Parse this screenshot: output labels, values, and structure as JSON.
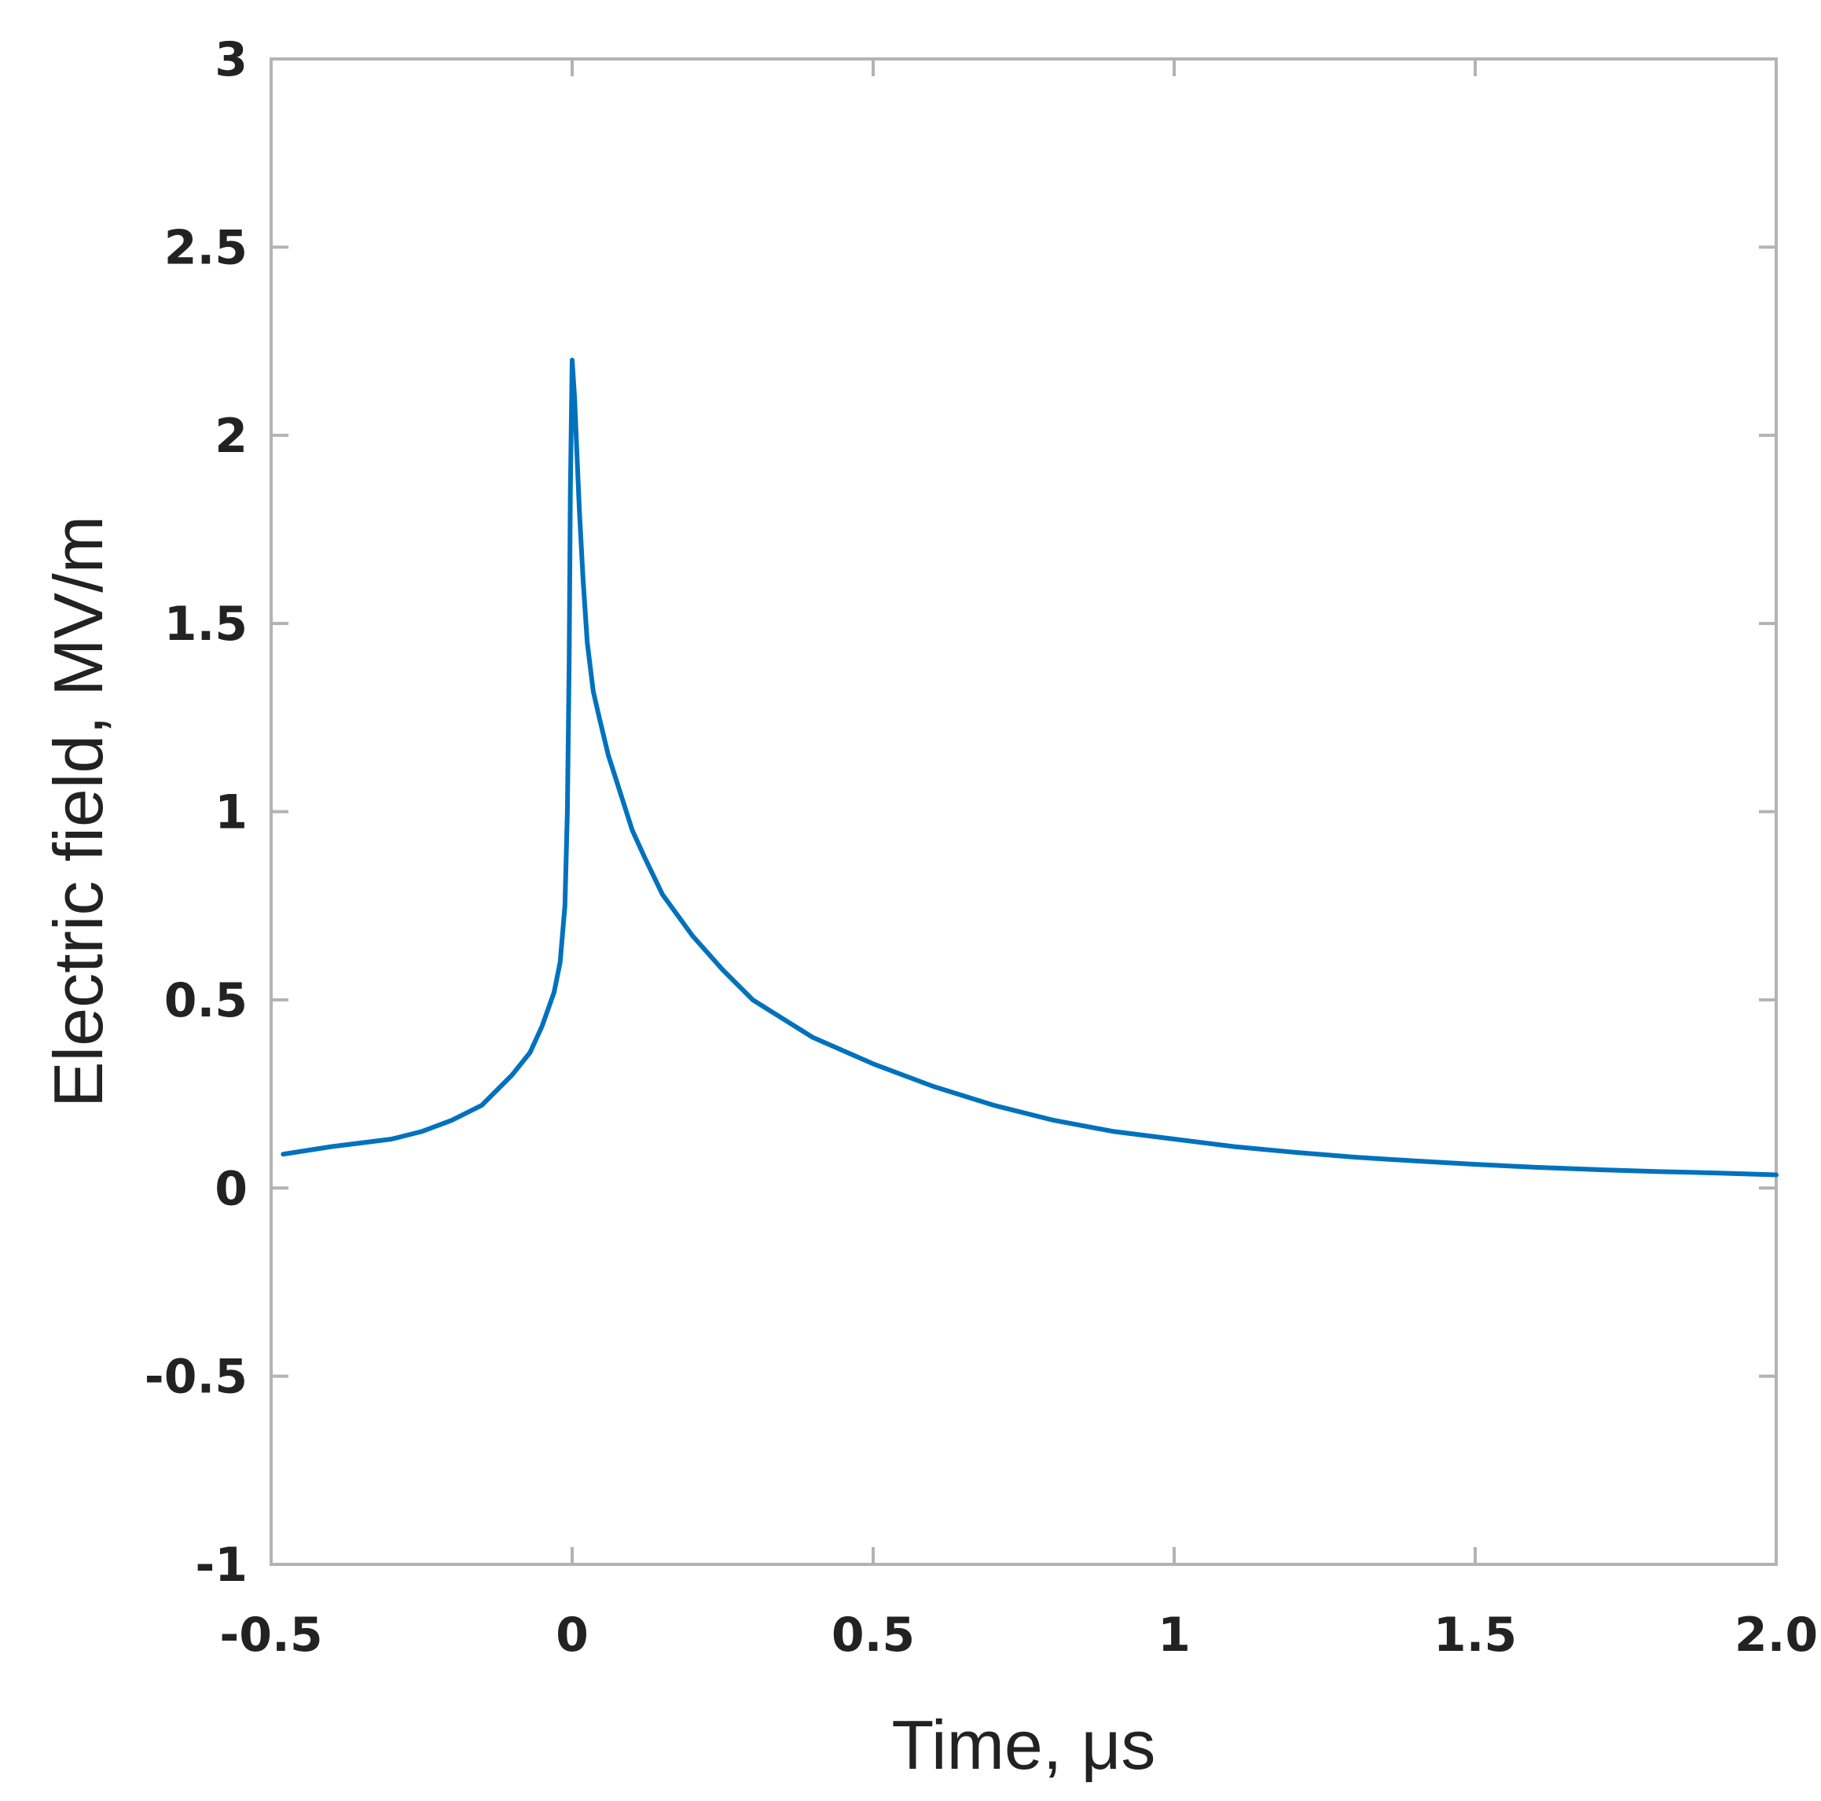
{
  "chart_data": {
    "type": "line",
    "title": "",
    "xlabel": "Time, μs",
    "ylabel": "Electric field, MV/m",
    "xlim": [
      -0.5,
      2.0
    ],
    "ylim": [
      -1,
      3
    ],
    "xticks": [
      -0.5,
      0,
      0.5,
      1,
      1.5,
      2.0
    ],
    "xtick_labels": [
      "-0.5",
      "0",
      "0.5",
      "1",
      "1.5",
      "2.0"
    ],
    "yticks": [
      -1,
      -0.5,
      0,
      0.5,
      1,
      1.5,
      2,
      2.5,
      3
    ],
    "ytick_labels": [
      "-1",
      "-0.5",
      "0",
      "0.5",
      "1",
      "1.5",
      "2",
      "2.5",
      "3"
    ],
    "grid": false,
    "line_color": "#0072BD",
    "axis_color": "#b3b3b3",
    "series": [
      {
        "x": [
          -0.48,
          -0.4,
          -0.3,
          -0.25,
          -0.2,
          -0.15,
          -0.1,
          -0.07,
          -0.05,
          -0.03,
          -0.02,
          -0.012,
          -0.008,
          -0.005,
          -0.003,
          0.0,
          0.004,
          0.008,
          0.012,
          0.018,
          0.025,
          0.035,
          0.045,
          0.06,
          0.08,
          0.1,
          0.12,
          0.15,
          0.2,
          0.25,
          0.3,
          0.4,
          0.5,
          0.6,
          0.7,
          0.8,
          0.9,
          1.0,
          1.1,
          1.2,
          1.3,
          1.4,
          1.5,
          1.6,
          1.7,
          1.8,
          1.9,
          2.0
        ],
        "y": [
          0.09,
          0.11,
          0.13,
          0.15,
          0.18,
          0.22,
          0.3,
          0.36,
          0.43,
          0.52,
          0.6,
          0.75,
          1.0,
          1.4,
          1.85,
          2.2,
          2.1,
          1.95,
          1.8,
          1.62,
          1.45,
          1.32,
          1.25,
          1.15,
          1.05,
          0.95,
          0.88,
          0.78,
          0.67,
          0.58,
          0.5,
          0.4,
          0.33,
          0.27,
          0.22,
          0.18,
          0.15,
          0.13,
          0.11,
          0.095,
          0.082,
          0.072,
          0.063,
          0.055,
          0.049,
          0.044,
          0.04,
          0.035
        ]
      }
    ]
  }
}
